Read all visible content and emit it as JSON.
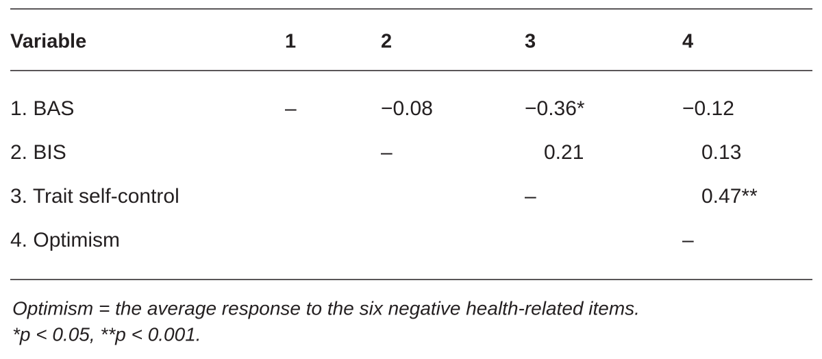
{
  "table": {
    "header": [
      "Variable",
      "1",
      "2",
      "3",
      "4"
    ],
    "rows": [
      [
        "1. BAS",
        "–",
        "−0.08",
        "−0.36*",
        "−0.12"
      ],
      [
        "2. BIS",
        null,
        "–",
        "0.21",
        "0.13"
      ],
      [
        "3. Trait self-control",
        null,
        null,
        "–",
        "0.47**"
      ],
      [
        "4. Optimism",
        null,
        null,
        null,
        "–"
      ]
    ]
  },
  "notes": [
    "Optimism = the average response to the six negative health-related items.",
    "*p < 0.05, **p < 0.001."
  ]
}
